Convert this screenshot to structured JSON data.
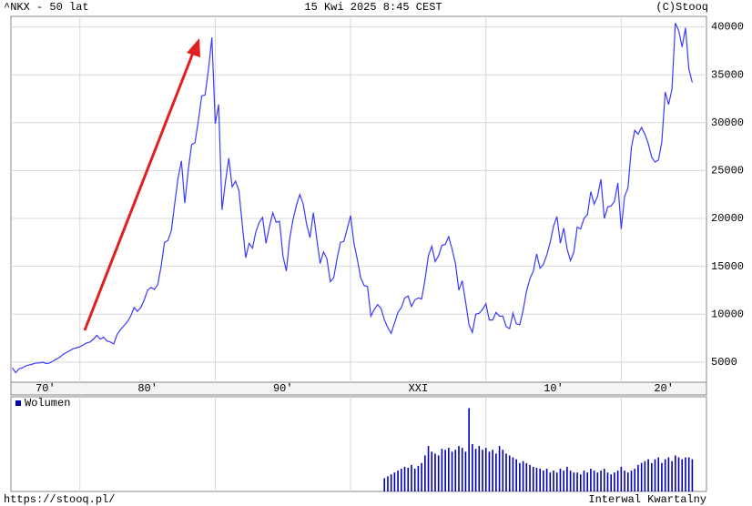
{
  "credit": "(C)Stooq",
  "footer": {
    "url": "https://stooq.pl/",
    "interval": "Interwal Kwartalny"
  },
  "chart_data": [
    {
      "type": "line",
      "title": "^NKX - 50 lat",
      "subtitle": "15 Kwi 2025 8:45 CEST",
      "x": [
        1975,
        1975.25,
        1975.5,
        1975.75,
        1976,
        1976.25,
        1976.5,
        1976.75,
        1977,
        1977.25,
        1977.5,
        1977.75,
        1978,
        1978.25,
        1978.5,
        1978.75,
        1979,
        1979.25,
        1979.5,
        1979.75,
        1980,
        1980.25,
        1980.5,
        1980.75,
        1981,
        1981.25,
        1981.5,
        1981.75,
        1982,
        1982.25,
        1982.5,
        1982.75,
        1983,
        1983.25,
        1983.5,
        1983.75,
        1984,
        1984.25,
        1984.5,
        1984.75,
        1985,
        1985.25,
        1985.5,
        1985.75,
        1986,
        1986.25,
        1986.5,
        1986.75,
        1987,
        1987.25,
        1987.5,
        1987.75,
        1988,
        1988.25,
        1988.5,
        1988.75,
        1989,
        1989.25,
        1989.5,
        1989.75,
        1990,
        1990.25,
        1990.5,
        1990.75,
        1991,
        1991.25,
        1991.5,
        1991.75,
        1992,
        1992.25,
        1992.5,
        1992.75,
        1993,
        1993.25,
        1993.5,
        1993.75,
        1994,
        1994.25,
        1994.5,
        1994.75,
        1995,
        1995.25,
        1995.5,
        1995.75,
        1996,
        1996.25,
        1996.5,
        1996.75,
        1997,
        1997.25,
        1997.5,
        1997.75,
        1998,
        1998.25,
        1998.5,
        1998.75,
        1999,
        1999.25,
        1999.5,
        1999.75,
        2000,
        2000.25,
        2000.5,
        2000.75,
        2001,
        2001.25,
        2001.5,
        2001.75,
        2002,
        2002.25,
        2002.5,
        2002.75,
        2003,
        2003.25,
        2003.5,
        2003.75,
        2004,
        2004.25,
        2004.5,
        2004.75,
        2005,
        2005.25,
        2005.5,
        2005.75,
        2006,
        2006.25,
        2006.5,
        2006.75,
        2007,
        2007.25,
        2007.5,
        2007.75,
        2008,
        2008.25,
        2008.5,
        2008.75,
        2009,
        2009.25,
        2009.5,
        2009.75,
        2010,
        2010.25,
        2010.5,
        2010.75,
        2011,
        2011.25,
        2011.5,
        2011.75,
        2012,
        2012.25,
        2012.5,
        2012.75,
        2013,
        2013.25,
        2013.5,
        2013.75,
        2014,
        2014.25,
        2014.5,
        2014.75,
        2015,
        2015.25,
        2015.5,
        2015.75,
        2016,
        2016.25,
        2016.5,
        2016.75,
        2017,
        2017.25,
        2017.5,
        2017.75,
        2018,
        2018.25,
        2018.5,
        2018.75,
        2019,
        2019.25,
        2019.5,
        2019.75,
        2020,
        2020.25,
        2020.5,
        2020.75,
        2021,
        2021.25,
        2021.5,
        2021.75,
        2022,
        2022.25,
        2022.5,
        2022.75,
        2023,
        2023.25,
        2023.5,
        2023.75,
        2024,
        2024.25,
        2024.5,
        2024.75,
        2025,
        2025.25
      ],
      "series": [
        {
          "color": "#3a3aff",
          "values": [
            4400,
            3900,
            4300,
            4400,
            4600,
            4700,
            4800,
            4900,
            4900,
            5000,
            4850,
            4900,
            5100,
            5300,
            5500,
            5800,
            6000,
            6200,
            6400,
            6500,
            6600,
            6800,
            7000,
            7100,
            7400,
            7800,
            7400,
            7600,
            7200,
            7100,
            6900,
            7900,
            8400,
            8800,
            9200,
            9800,
            10700,
            10300,
            10700,
            11500,
            12500,
            12800,
            12600,
            13100,
            15000,
            17500,
            17700,
            18700,
            21500,
            24200,
            26000,
            21600,
            25000,
            27700,
            27900,
            30200,
            32800,
            32900,
            35600,
            38900,
            29900,
            31900,
            20900,
            23800,
            26300,
            23300,
            23900,
            22900,
            19300,
            15900,
            17400,
            16900,
            18600,
            19600,
            20100,
            17400,
            19100,
            20600,
            19600,
            19700,
            16100,
            14500,
            17900,
            19900,
            21400,
            22500,
            21500,
            19400,
            18000,
            20600,
            17900,
            15300,
            16500,
            15800,
            13400,
            13800,
            15800,
            17500,
            17600,
            18900,
            20300,
            17400,
            15700,
            13800,
            13000,
            12900,
            9800,
            10500,
            11000,
            10600,
            9400,
            8600,
            8000,
            9100,
            10200,
            10700,
            11700,
            11900,
            10800,
            11500,
            11700,
            11600,
            13600,
            16100,
            17100,
            15500,
            16100,
            17200,
            17300,
            18100,
            16800,
            15300,
            12500,
            13500,
            11300,
            8900,
            8100,
            10000,
            10100,
            10500,
            11100,
            9400,
            9400,
            10200,
            9800,
            9800,
            8700,
            8500,
            10100,
            9000,
            8900,
            10400,
            12400,
            13700,
            14500,
            16300,
            14800,
            15200,
            16200,
            17500,
            19200,
            20200,
            17400,
            19000,
            16800,
            15600,
            16500,
            19100,
            18900,
            20000,
            20400,
            22800,
            21500,
            22300,
            24100,
            20000,
            21200,
            21300,
            21800,
            23700,
            18900,
            22300,
            23200,
            27400,
            29200,
            28800,
            29500,
            28800,
            27800,
            26400,
            25900,
            26100,
            28000,
            33200,
            31900,
            33500,
            40400,
            39600,
            37900,
            39900,
            35600,
            34200
          ]
        }
      ],
      "xlim": [
        1974.9,
        2026.3
      ],
      "ylim": [
        2900,
        41100
      ],
      "xticks": [
        {
          "value": 1970,
          "label": "70'"
        },
        {
          "value": 1980,
          "label": "80'"
        },
        {
          "value": 1990,
          "label": "90'"
        },
        {
          "value": 2000,
          "label": "XXI"
        },
        {
          "value": 2010,
          "label": "10'"
        },
        {
          "value": 2020,
          "label": "20'"
        }
      ],
      "yticks": [
        5000,
        10000,
        15000,
        20000,
        25000,
        30000,
        35000,
        40000
      ],
      "grid": true
    },
    {
      "type": "bar",
      "x": [
        2002.5,
        2002.75,
        2003,
        2003.25,
        2003.5,
        2003.75,
        2004,
        2004.25,
        2004.5,
        2004.75,
        2005,
        2005.25,
        2005.5,
        2005.75,
        2006,
        2006.25,
        2006.5,
        2006.75,
        2007,
        2007.25,
        2007.5,
        2007.75,
        2008,
        2008.25,
        2008.5,
        2008.75,
        2009,
        2009.25,
        2009.5,
        2009.75,
        2010,
        2010.25,
        2010.5,
        2010.75,
        2011,
        2011.25,
        2011.5,
        2011.75,
        2012,
        2012.25,
        2012.5,
        2012.75,
        2013,
        2013.25,
        2013.5,
        2013.75,
        2014,
        2014.25,
        2014.5,
        2014.75,
        2015,
        2015.25,
        2015.5,
        2015.75,
        2016,
        2016.25,
        2016.5,
        2016.75,
        2017,
        2017.25,
        2017.5,
        2017.75,
        2018,
        2018.25,
        2018.5,
        2018.75,
        2019,
        2019.25,
        2019.5,
        2019.75,
        2020,
        2020.25,
        2020.5,
        2020.75,
        2021,
        2021.25,
        2021.5,
        2021.75,
        2022,
        2022.25,
        2022.5,
        2022.75,
        2023,
        2023.25,
        2023.5,
        2023.75,
        2024,
        2024.25,
        2024.5,
        2024.75,
        2025,
        2025.25
      ],
      "series": [
        {
          "name": "Wolumen",
          "color": "#0000b0",
          "values": [
            14,
            16,
            18,
            20,
            22,
            24,
            26,
            25,
            28,
            24,
            27,
            30,
            38,
            48,
            42,
            40,
            38,
            45,
            44,
            46,
            42,
            44,
            48,
            46,
            42,
            88,
            50,
            45,
            48,
            44,
            46,
            42,
            44,
            40,
            48,
            44,
            40,
            38,
            36,
            34,
            30,
            32,
            30,
            28,
            26,
            25,
            24,
            22,
            24,
            20,
            22,
            20,
            24,
            22,
            26,
            22,
            20,
            20,
            18,
            22,
            20,
            24,
            22,
            20,
            22,
            24,
            20,
            18,
            20,
            22,
            26,
            22,
            20,
            22,
            24,
            28,
            30,
            32,
            34,
            30,
            34,
            36,
            30,
            34,
            36,
            32,
            38,
            36,
            34,
            36,
            36,
            34
          ]
        }
      ],
      "xlim": [
        1974.9,
        2026.3
      ],
      "ylim": [
        0,
        100
      ]
    }
  ]
}
